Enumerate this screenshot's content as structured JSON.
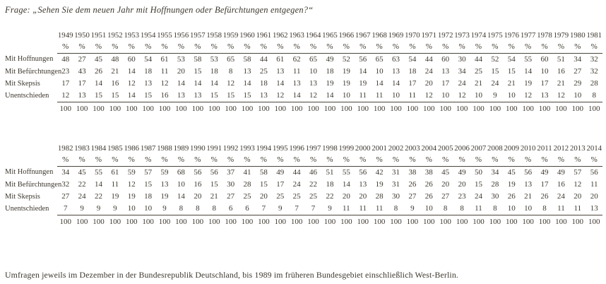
{
  "title": "Frage: „Sehen Sie dem neuen Jahr mit Hoffnungen oder Befürchtungen entgegen?“",
  "footnote": "Umfragen jeweils im Dezember in der Bundesrepublik Deutschland, bis 1989 im früheren Bundesgebiet einschließlich West-Berlin.",
  "unit_label": "%",
  "colors": {
    "text": "#3e382f",
    "rule": "#4b453c",
    "background": "#ffffff"
  },
  "tables": [
    {
      "name": "survey-table-1949-1981",
      "years": [
        "1949",
        "1950",
        "1951",
        "1952",
        "1953",
        "1954",
        "1955",
        "1956",
        "1957",
        "1958",
        "1959",
        "1960",
        "1961",
        "1962",
        "1963",
        "1964",
        "1965",
        "1966",
        "1967",
        "1968",
        "1969",
        "1970",
        "1971",
        "1972",
        "1973",
        "1974",
        "1975",
        "1976",
        "1977",
        "1978",
        "1979",
        "1980",
        "1981"
      ],
      "rows": [
        {
          "label": "Mit Hoffnungen",
          "values": [
            48,
            27,
            45,
            48,
            60,
            54,
            61,
            53,
            58,
            53,
            65,
            58,
            44,
            61,
            62,
            65,
            49,
            52,
            56,
            65,
            63,
            54,
            44,
            60,
            30,
            44,
            52,
            54,
            55,
            60,
            51,
            34,
            32
          ]
        },
        {
          "label": "Mit Befürchtungen",
          "values": [
            23,
            43,
            26,
            21,
            14,
            18,
            11,
            20,
            15,
            18,
            8,
            13,
            25,
            13,
            11,
            10,
            18,
            19,
            14,
            10,
            13,
            18,
            24,
            13,
            34,
            25,
            15,
            15,
            14,
            10,
            16,
            27,
            32
          ]
        },
        {
          "label": "Mit Skepsis",
          "values": [
            17,
            17,
            14,
            16,
            12,
            13,
            12,
            14,
            14,
            14,
            12,
            14,
            18,
            14,
            13,
            13,
            19,
            19,
            19,
            14,
            14,
            17,
            20,
            17,
            24,
            21,
            24,
            21,
            19,
            17,
            21,
            29,
            28
          ]
        },
        {
          "label": "Unentschieden",
          "values": [
            12,
            13,
            15,
            15,
            14,
            15,
            16,
            13,
            13,
            15,
            15,
            15,
            13,
            12,
            14,
            12,
            14,
            10,
            11,
            11,
            10,
            11,
            12,
            10,
            12,
            10,
            9,
            10,
            12,
            13,
            12,
            10,
            8
          ]
        }
      ],
      "totals": [
        100,
        100,
        100,
        100,
        100,
        100,
        100,
        100,
        100,
        100,
        100,
        100,
        100,
        100,
        100,
        100,
        100,
        100,
        100,
        100,
        100,
        100,
        100,
        100,
        100,
        100,
        100,
        100,
        100,
        100,
        100,
        100,
        100
      ]
    },
    {
      "name": "survey-table-1982-2014",
      "years": [
        "1982",
        "1983",
        "1984",
        "1985",
        "1986",
        "1987",
        "1988",
        "1989",
        "1990",
        "1991",
        "1992",
        "1993",
        "1994",
        "1995",
        "1996",
        "1997",
        "1998",
        "1999",
        "2000",
        "2001",
        "2002",
        "2003",
        "2004",
        "2005",
        "2006",
        "2007",
        "2008",
        "2009",
        "2010",
        "2011",
        "2012",
        "2013",
        "2014"
      ],
      "rows": [
        {
          "label": "Mit Hoffnungen",
          "values": [
            34,
            45,
            55,
            61,
            59,
            57,
            59,
            68,
            56,
            56,
            37,
            41,
            58,
            49,
            44,
            46,
            51,
            55,
            56,
            42,
            31,
            38,
            38,
            45,
            49,
            50,
            34,
            45,
            56,
            49,
            49,
            57,
            56
          ]
        },
        {
          "label": "Mit Befürchtungen",
          "values": [
            32,
            22,
            14,
            11,
            12,
            15,
            13,
            10,
            16,
            15,
            30,
            28,
            15,
            17,
            24,
            22,
            18,
            14,
            13,
            19,
            31,
            26,
            26,
            20,
            20,
            15,
            28,
            19,
            13,
            17,
            16,
            12,
            11
          ]
        },
        {
          "label": "Mit Skepsis",
          "values": [
            27,
            24,
            22,
            19,
            19,
            18,
            19,
            14,
            20,
            21,
            27,
            25,
            20,
            25,
            25,
            25,
            22,
            20,
            20,
            28,
            30,
            27,
            26,
            27,
            23,
            24,
            30,
            26,
            21,
            26,
            24,
            20,
            20
          ]
        },
        {
          "label": "Unentschieden",
          "values": [
            7,
            9,
            9,
            9,
            10,
            10,
            9,
            8,
            8,
            8,
            6,
            6,
            7,
            9,
            7,
            7,
            9,
            11,
            11,
            11,
            8,
            9,
            10,
            8,
            8,
            11,
            8,
            10,
            10,
            8,
            11,
            11,
            13
          ]
        }
      ],
      "totals": [
        100,
        100,
        100,
        100,
        100,
        100,
        100,
        100,
        100,
        100,
        100,
        100,
        100,
        100,
        100,
        100,
        100,
        100,
        100,
        100,
        100,
        100,
        100,
        100,
        100,
        100,
        100,
        100,
        100,
        100,
        100,
        100,
        100
      ]
    }
  ]
}
